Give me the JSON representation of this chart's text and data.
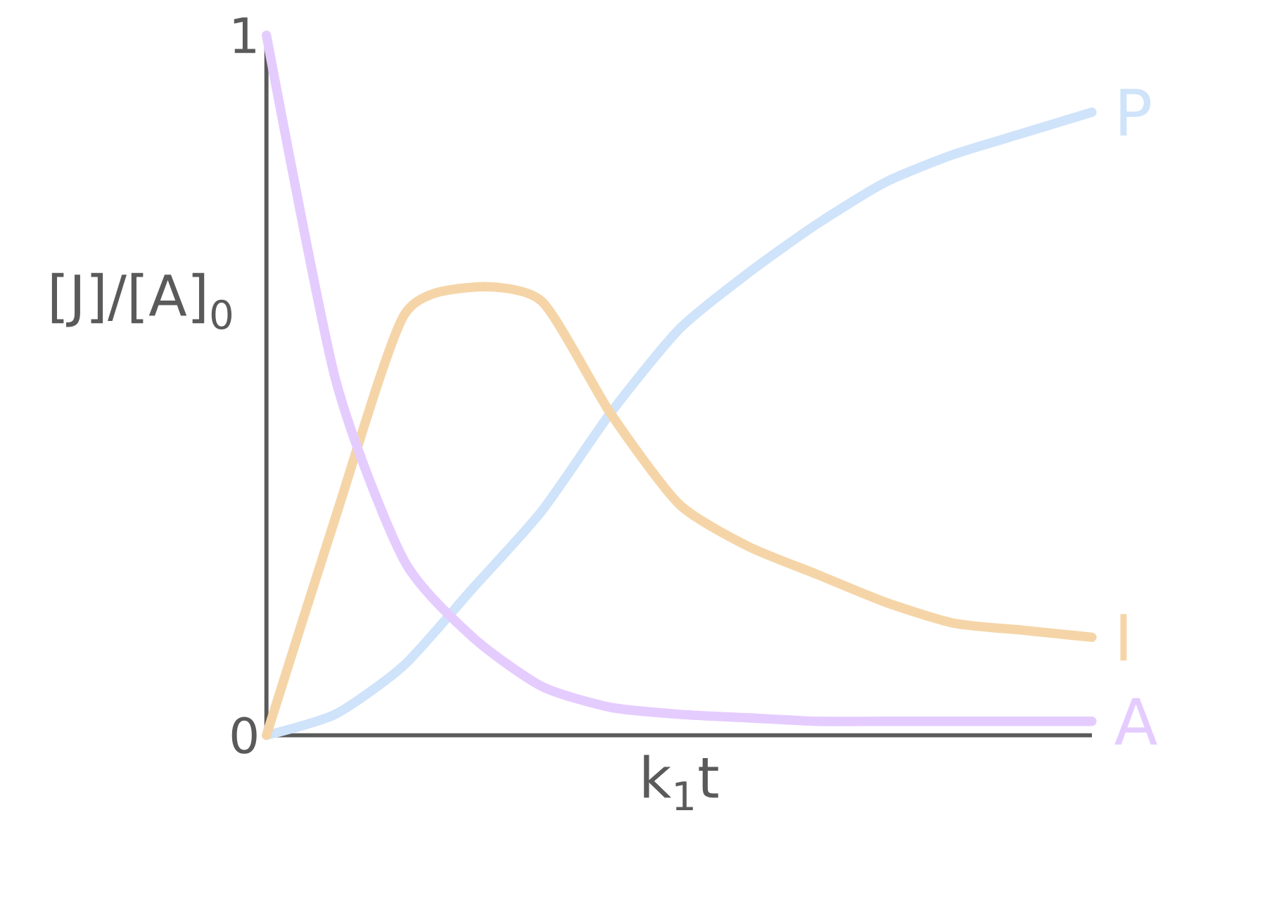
{
  "chart_data": {
    "type": "line",
    "xlabel": "k$_{1}$t",
    "ylabel": "[J]/[A]$_{0}$",
    "categories": [
      null,
      null,
      null,
      null,
      null,
      null,
      null,
      null,
      null,
      null,
      null,
      null,
      null
    ],
    "ylim": [
      0,
      1
    ],
    "yticks": [
      0,
      1
    ],
    "series": [
      {
        "name": "P",
        "color": "#cfe3fa",
        "values": [
          0,
          0.03,
          0.1,
          0.21,
          0.32,
          0.46,
          0.58,
          0.66,
          0.73,
          0.79,
          0.83,
          0.86,
          0.89
        ]
      },
      {
        "name": "I",
        "color": "#f5d5a8",
        "values": [
          0,
          0.31,
          0.6,
          0.64,
          0.62,
          0.46,
          0.33,
          0.27,
          0.23,
          0.19,
          0.16,
          0.15,
          0.14
        ]
      },
      {
        "name": "A",
        "color": "#e5ccff",
        "values": [
          1,
          0.51,
          0.25,
          0.14,
          0.07,
          0.04,
          0.03,
          0.025,
          0.02,
          0.02,
          0.02,
          0.02,
          0.02
        ]
      }
    ]
  }
}
